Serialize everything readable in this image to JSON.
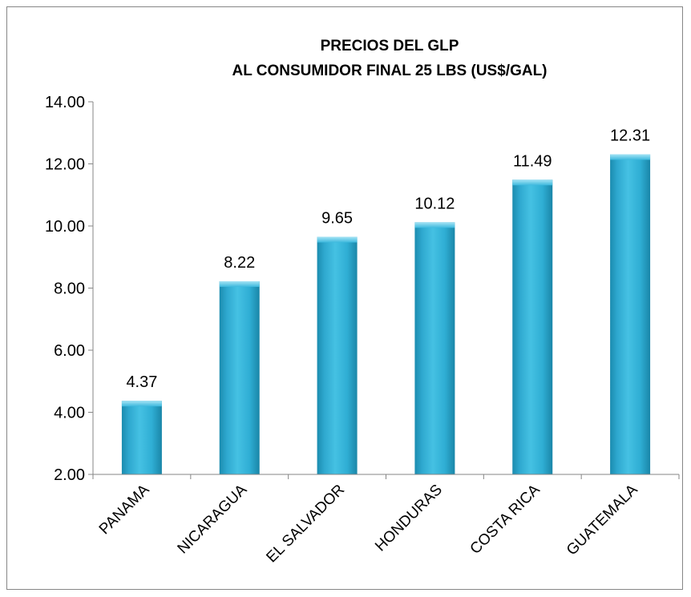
{
  "chart_data": {
    "type": "bar",
    "title_lines": [
      "PRECIOS DEL GLP",
      "AL CONSUMIDOR FINAL  25 LBS (US$/GAL)"
    ],
    "categories": [
      "PANAMA",
      "NICARAGUA",
      "EL SALVADOR",
      "HONDURAS",
      "COSTA RICA",
      "GUATEMALA"
    ],
    "values": [
      4.37,
      8.22,
      9.65,
      10.12,
      11.49,
      12.31
    ],
    "value_labels": [
      "4.37",
      "8.22",
      "9.65",
      "10.12",
      "11.49",
      "12.31"
    ],
    "y_ticks": [
      "2.00",
      "4.00",
      "6.00",
      "8.00",
      "10.00",
      "12.00",
      "14.00"
    ],
    "ylim": [
      2,
      14
    ],
    "xlabel": "",
    "ylabel": "",
    "grid": false,
    "legend": "none",
    "colors": {
      "bar_main": "#31B1D6",
      "bar_light": "#7FD4EC",
      "bar_dark": "#1B8CAF",
      "axis": "#868686",
      "text": "#000000"
    }
  }
}
